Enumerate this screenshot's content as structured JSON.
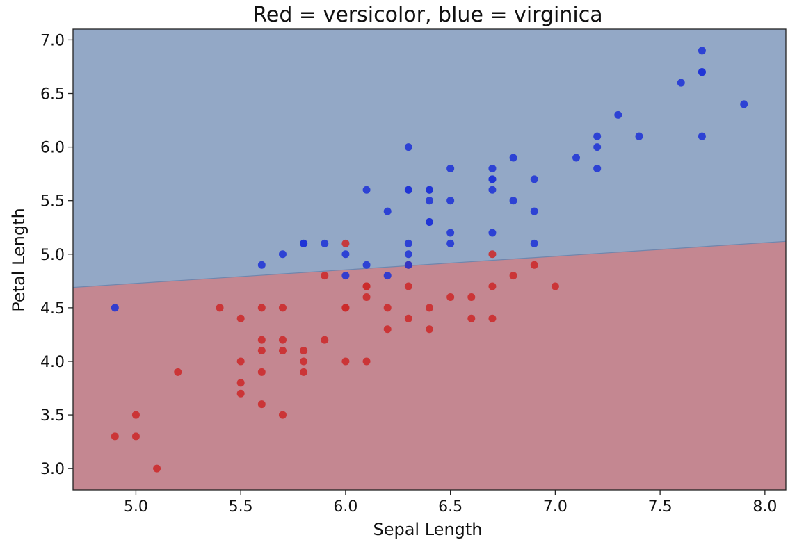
{
  "chart_data": {
    "type": "scatter",
    "title": "Red = versicolor, blue = virginica",
    "xlabel": "Sepal Length",
    "ylabel": "Petal Length",
    "xlim": [
      4.7,
      8.1
    ],
    "ylim": [
      2.8,
      7.1
    ],
    "xticks": [
      "5.0",
      "5.5",
      "6.0",
      "6.5",
      "7.0",
      "7.5",
      "8.0"
    ],
    "yticks": [
      "3.0",
      "3.5",
      "4.0",
      "4.5",
      "5.0",
      "5.5",
      "6.0",
      "6.5",
      "7.0"
    ],
    "grid": false,
    "colors": {
      "versicolor_point": "#cc2a2a",
      "virginica_point": "#1f33d6",
      "versicolor_region": "#c48791",
      "virginica_region": "#93a8c6",
      "boundary": "#6f86ad"
    },
    "decision_boundary": {
      "x": [
        4.7,
        8.1
      ],
      "y": [
        4.69,
        5.12
      ]
    },
    "series": [
      {
        "points": [
          [
            7.0,
            4.7
          ],
          [
            6.4,
            4.5
          ],
          [
            6.9,
            4.9
          ],
          [
            5.5,
            4.0
          ],
          [
            6.5,
            4.6
          ],
          [
            5.7,
            4.5
          ],
          [
            6.3,
            4.7
          ],
          [
            4.9,
            3.3
          ],
          [
            6.6,
            4.6
          ],
          [
            5.2,
            3.9
          ],
          [
            5.0,
            3.5
          ],
          [
            5.9,
            4.2
          ],
          [
            6.0,
            4.0
          ],
          [
            6.1,
            4.7
          ],
          [
            5.6,
            3.6
          ],
          [
            6.7,
            4.4
          ],
          [
            5.6,
            4.5
          ],
          [
            5.8,
            4.1
          ],
          [
            6.2,
            4.5
          ],
          [
            5.6,
            3.9
          ],
          [
            5.9,
            4.8
          ],
          [
            6.1,
            4.0
          ],
          [
            6.3,
            4.9
          ],
          [
            6.1,
            4.7
          ],
          [
            6.4,
            4.3
          ],
          [
            6.6,
            4.4
          ],
          [
            6.8,
            4.8
          ],
          [
            6.7,
            5.0
          ],
          [
            6.0,
            4.5
          ],
          [
            5.7,
            3.5
          ],
          [
            5.5,
            3.8
          ],
          [
            5.5,
            3.7
          ],
          [
            5.8,
            3.9
          ],
          [
            6.0,
            5.1
          ],
          [
            5.4,
            4.5
          ],
          [
            6.0,
            4.5
          ],
          [
            6.7,
            4.7
          ],
          [
            6.3,
            4.4
          ],
          [
            5.6,
            4.1
          ],
          [
            5.5,
            4.4
          ],
          [
            6.1,
            4.6
          ],
          [
            5.8,
            4.0
          ],
          [
            5.0,
            3.3
          ],
          [
            5.6,
            4.2
          ],
          [
            5.7,
            4.2
          ],
          [
            5.7,
            4.1
          ],
          [
            6.2,
            4.3
          ],
          [
            5.1,
            3.0
          ]
        ]
      },
      {
        "points": [
          [
            6.3,
            6.0
          ],
          [
            5.8,
            5.1
          ],
          [
            7.1,
            5.9
          ],
          [
            6.3,
            5.6
          ],
          [
            6.5,
            5.8
          ],
          [
            7.6,
            6.6
          ],
          [
            4.9,
            4.5
          ],
          [
            7.3,
            6.3
          ],
          [
            6.7,
            5.8
          ],
          [
            7.2,
            6.1
          ],
          [
            6.5,
            5.1
          ],
          [
            6.4,
            5.3
          ],
          [
            6.8,
            5.5
          ],
          [
            5.7,
            5.0
          ],
          [
            5.8,
            5.1
          ],
          [
            6.4,
            5.3
          ],
          [
            6.5,
            5.5
          ],
          [
            7.7,
            6.7
          ],
          [
            7.7,
            6.9
          ],
          [
            6.0,
            5.0
          ],
          [
            6.9,
            5.7
          ],
          [
            5.6,
            4.9
          ],
          [
            7.7,
            6.7
          ],
          [
            6.3,
            4.9
          ],
          [
            6.7,
            5.7
          ],
          [
            7.2,
            6.0
          ],
          [
            6.2,
            4.8
          ],
          [
            6.1,
            4.9
          ],
          [
            6.4,
            5.6
          ],
          [
            7.2,
            5.8
          ],
          [
            7.4,
            6.1
          ],
          [
            7.9,
            6.4
          ],
          [
            6.4,
            5.6
          ],
          [
            6.3,
            5.1
          ],
          [
            6.1,
            5.6
          ],
          [
            7.7,
            6.1
          ],
          [
            6.3,
            5.6
          ],
          [
            6.4,
            5.5
          ],
          [
            6.0,
            4.8
          ],
          [
            6.9,
            5.4
          ],
          [
            6.7,
            5.6
          ],
          [
            6.9,
            5.1
          ],
          [
            6.8,
            5.9
          ],
          [
            6.7,
            5.7
          ],
          [
            6.7,
            5.2
          ],
          [
            6.3,
            5.0
          ],
          [
            6.5,
            5.2
          ],
          [
            6.2,
            5.4
          ],
          [
            5.9,
            5.1
          ]
        ]
      }
    ]
  }
}
